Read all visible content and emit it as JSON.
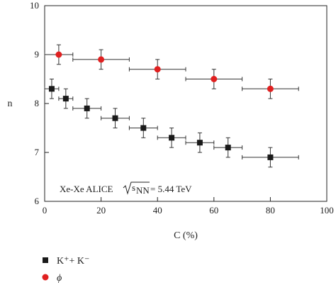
{
  "chart_data": {
    "type": "scatter",
    "xlabel": "C (%)",
    "ylabel": "n",
    "xlim": [
      0,
      100
    ],
    "ylim": [
      6,
      10
    ],
    "x_ticks": [
      0,
      20,
      40,
      60,
      80,
      100
    ],
    "y_ticks": [
      6,
      7,
      8,
      9,
      10
    ],
    "grid": false,
    "legend_position": "bottom-left, below plot",
    "annotation": {
      "prefix": "Xe-Xe ALICE",
      "radicand": "s",
      "subscript": "NN",
      "value": "= 5.44 TeV"
    },
    "series": [
      {
        "name": "K⁺+ K⁻",
        "marker": "square",
        "color": "#1a1a1a",
        "points": [
          {
            "x": 2.5,
            "y": 8.3,
            "xlow": 0,
            "xhigh": 5,
            "yerr": 0.2
          },
          {
            "x": 7.5,
            "y": 8.1,
            "xlow": 5,
            "xhigh": 10,
            "yerr": 0.2
          },
          {
            "x": 15,
            "y": 7.9,
            "xlow": 10,
            "xhigh": 20,
            "yerr": 0.2
          },
          {
            "x": 25,
            "y": 7.7,
            "xlow": 20,
            "xhigh": 30,
            "yerr": 0.2
          },
          {
            "x": 35,
            "y": 7.5,
            "xlow": 30,
            "xhigh": 40,
            "yerr": 0.2
          },
          {
            "x": 45,
            "y": 7.3,
            "xlow": 40,
            "xhigh": 50,
            "yerr": 0.2
          },
          {
            "x": 55,
            "y": 7.2,
            "xlow": 50,
            "xhigh": 60,
            "yerr": 0.2
          },
          {
            "x": 65,
            "y": 7.1,
            "xlow": 60,
            "xhigh": 70,
            "yerr": 0.2
          },
          {
            "x": 80,
            "y": 6.9,
            "xlow": 70,
            "xhigh": 90,
            "yerr": 0.2
          }
        ]
      },
      {
        "name": "ϕ",
        "marker": "circle",
        "color": "#e02020",
        "points": [
          {
            "x": 5,
            "y": 9.0,
            "xlow": 0,
            "xhigh": 10,
            "yerr": 0.2
          },
          {
            "x": 20,
            "y": 8.9,
            "xlow": 10,
            "xhigh": 30,
            "yerr": 0.2
          },
          {
            "x": 40,
            "y": 8.7,
            "xlow": 30,
            "xhigh": 50,
            "yerr": 0.2
          },
          {
            "x": 60,
            "y": 8.5,
            "xlow": 50,
            "xhigh": 70,
            "yerr": 0.2
          },
          {
            "x": 80,
            "y": 8.3,
            "xlow": 70,
            "xhigh": 90,
            "yerr": 0.2
          }
        ]
      }
    ]
  }
}
